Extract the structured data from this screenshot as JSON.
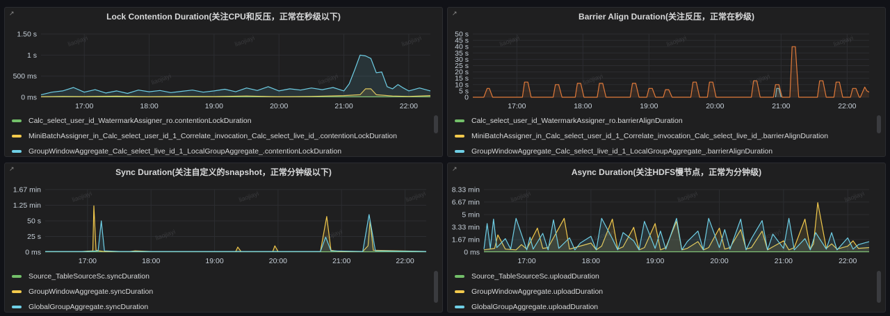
{
  "panels": [
    {
      "title": "Lock Contention Duration(关注CPU和反压，正常在秒级以下)",
      "watermark": "liaojiayi",
      "legend": [
        {
          "label": "Calc_select_user_id_WatermarkAssigner_ro.contentionLockDuration",
          "color": "#73bf69"
        },
        {
          "label": "MiniBatchAssigner_in_Calc_select_user_id_1_Correlate_invocation_Calc_select_live_id_.contentionLockDuration",
          "color": "#f2c94c"
        },
        {
          "label": "GroupWindowAggregate_Calc_select_live_id_1_LocalGroupAggregate_.contentionLockDuration",
          "color": "#6fcfe6"
        }
      ],
      "chart_data": {
        "type": "line",
        "yticks": [
          "0 ms",
          "500 ms",
          "1 s",
          "1.50 s"
        ],
        "ylim_ms": [
          0,
          1500
        ],
        "xticks": [
          "17:00",
          "18:00",
          "19:00",
          "20:00",
          "21:00",
          "22:00"
        ],
        "series": [
          {
            "name": "Calc_select_user_id_WatermarkAssigner_ro.contentionLockDuration",
            "color": "#73bf69",
            "x": [
              "16:20",
              "17:00",
              "18:00",
              "19:00",
              "20:00",
              "21:00",
              "22:00",
              "22:20"
            ],
            "y": [
              10,
              10,
              10,
              10,
              10,
              10,
              10,
              10
            ]
          },
          {
            "name": "MiniBatchAssigner_in_Calc_select_user_id_1_Correlate_invocation_Calc_select_live_id_.contentionLockDuration",
            "color": "#f2c94c",
            "x": [
              "16:20",
              "16:40",
              "17:00",
              "17:30",
              "18:00",
              "18:30",
              "19:00",
              "19:30",
              "20:00",
              "20:30",
              "21:00",
              "21:15",
              "21:20",
              "21:25",
              "21:30",
              "21:45",
              "22:00",
              "22:20"
            ],
            "y": [
              10,
              20,
              15,
              25,
              10,
              20,
              15,
              30,
              10,
              20,
              40,
              60,
              200,
              200,
              60,
              30,
              20,
              40
            ]
          },
          {
            "name": "GroupWindowAggregate_Calc_select_live_id_1_LocalGroupAggregate_.contentionLockDuration",
            "color": "#6fcfe6",
            "x": [
              "16:20",
              "16:30",
              "16:40",
              "16:50",
              "17:00",
              "17:10",
              "17:20",
              "17:30",
              "17:40",
              "17:50",
              "18:00",
              "18:10",
              "18:20",
              "18:30",
              "18:40",
              "18:50",
              "19:00",
              "19:10",
              "19:20",
              "19:30",
              "19:40",
              "19:50",
              "20:00",
              "20:10",
              "20:20",
              "20:30",
              "20:40",
              "20:50",
              "21:00",
              "21:05",
              "21:10",
              "21:15",
              "21:20",
              "21:25",
              "21:30",
              "21:35",
              "21:40",
              "21:45",
              "21:50",
              "21:55",
              "22:00",
              "22:10",
              "22:20"
            ],
            "y": [
              60,
              120,
              150,
              230,
              120,
              180,
              100,
              150,
              90,
              170,
              130,
              160,
              110,
              140,
              170,
              120,
              150,
              190,
              130,
              220,
              160,
              250,
              150,
              200,
              170,
              220,
              180,
              230,
              150,
              320,
              650,
              1000,
              980,
              920,
              580,
              600,
              250,
              200,
              300,
              220,
              150,
              220,
              150
            ]
          }
        ]
      }
    },
    {
      "title": "Barrier Align Duration(关注反压，正常在秒级)",
      "watermark": "liaojiayi",
      "legend": [
        {
          "label": "Calc_select_user_id_WatermarkAssigner_ro.barrierAlignDuration",
          "color": "#73bf69"
        },
        {
          "label": "MiniBatchAssigner_in_Calc_select_user_id_1_Correlate_invocation_Calc_select_live_id_.barrierAlignDuration",
          "color": "#f2c94c"
        },
        {
          "label": "GroupWindowAggregate_Calc_select_live_id_1_LocalGroupAggregate_.barrierAlignDuration",
          "color": "#6fcfe6"
        }
      ],
      "chart_data": {
        "type": "line",
        "yticks": [
          "0",
          "5 s",
          "10 s",
          "15 s",
          "20 s",
          "25 s",
          "30 s",
          "35 s",
          "40 s",
          "45 s",
          "50 s"
        ],
        "ylim_s": [
          0,
          50
        ],
        "xticks": [
          "17:00",
          "18:00",
          "19:00",
          "20:00",
          "21:00",
          "22:00"
        ],
        "series": [
          {
            "name": "MiniBatchAssigner_in_Calc_select_user_id_1_Correlate_invocation_Calc_select_live_id_.barrierAlignDuration",
            "color": "#e07a3a",
            "x": [
              "16:20",
              "16:30",
              "16:33",
              "16:35",
              "16:38",
              "17:00",
              "17:05",
              "17:07",
              "17:10",
              "17:13",
              "17:30",
              "17:33",
              "17:35",
              "17:38",
              "17:41",
              "17:50",
              "17:53",
              "17:55",
              "17:58",
              "18:01",
              "18:10",
              "18:13",
              "18:15",
              "18:18",
              "18:21",
              "18:40",
              "18:43",
              "18:45",
              "18:48",
              "18:51",
              "18:55",
              "18:58",
              "19:00",
              "19:03",
              "19:06",
              "19:10",
              "19:13",
              "19:15",
              "19:18",
              "19:21",
              "19:35",
              "19:38",
              "19:40",
              "19:43",
              "19:46",
              "19:50",
              "19:53",
              "19:55",
              "19:58",
              "20:01",
              "20:30",
              "20:33",
              "20:35",
              "20:38",
              "20:41",
              "20:50",
              "20:53",
              "20:55",
              "20:58",
              "21:01",
              "21:05",
              "21:08",
              "21:10",
              "21:13",
              "21:16",
              "21:30",
              "21:33",
              "21:35",
              "21:38",
              "21:41",
              "21:45",
              "21:48",
              "21:50",
              "21:53",
              "21:56",
              "22:00",
              "22:03",
              "22:05",
              "22:08",
              "22:11",
              "22:12",
              "22:14",
              "22:16",
              "22:18",
              "22:20"
            ],
            "y": [
              0,
              0,
              7,
              7,
              0,
              0,
              0,
              12,
              12,
              0,
              0,
              0,
              10,
              10,
              0,
              0,
              0,
              11,
              11,
              0,
              0,
              0,
              11,
              11,
              0,
              0,
              0,
              11,
              11,
              0,
              0,
              0,
              7,
              7,
              0,
              0,
              0,
              6,
              6,
              0,
              0,
              0,
              12,
              12,
              0,
              0,
              0,
              12,
              12,
              0,
              0,
              0,
              13,
              13,
              0,
              0,
              0,
              10,
              10,
              0,
              0,
              0,
              40,
              40,
              0,
              0,
              0,
              13,
              13,
              0,
              0,
              0,
              12,
              12,
              0,
              0,
              0,
              7,
              7,
              0,
              0,
              4,
              8,
              5,
              4
            ]
          },
          {
            "name": "GroupWindowAggregate_Calc_select_live_id_1_LocalGroupAggregate_.barrierAlignDuration",
            "color": "#8ab8b8",
            "x": [
              "20:55",
              "20:56",
              "20:58",
              "21:00"
            ],
            "y": [
              0,
              7,
              7,
              0
            ]
          }
        ]
      }
    },
    {
      "title": "Sync Duration(关注自定义的snapshot，正常分钟级以下)",
      "watermark": "liaojiayi",
      "legend": [
        {
          "label": "Source_TableSourceSc.syncDuration",
          "color": "#73bf69"
        },
        {
          "label": "GroupWindowAggregate.syncDuration",
          "color": "#f2c94c"
        },
        {
          "label": "GlobalGroupAggregate.syncDuration",
          "color": "#6fcfe6"
        }
      ],
      "chart_data": {
        "type": "line",
        "yticks": [
          "0 ms",
          "25 s",
          "50 s",
          "1.25 min",
          "1.67 min"
        ],
        "ylim_s": [
          0,
          100
        ],
        "xticks": [
          "17:00",
          "18:00",
          "19:00",
          "20:00",
          "21:00",
          "22:00"
        ],
        "series": [
          {
            "name": "Source_TableSourceSc.syncDuration",
            "color": "#73bf69",
            "x": [
              "16:20",
              "22:20"
            ],
            "y": [
              0.5,
              0.5
            ]
          },
          {
            "name": "GroupWindowAggregate.syncDuration",
            "color": "#f2c94c",
            "x": [
              "16:20",
              "16:50",
              "16:55",
              "17:05",
              "17:06",
              "17:08",
              "17:15",
              "17:40",
              "17:45",
              "18:00",
              "19:20",
              "19:22",
              "19:25",
              "19:55",
              "19:57",
              "20:00",
              "20:40",
              "20:46",
              "20:50",
              "20:58",
              "21:20",
              "21:25",
              "21:27",
              "21:30",
              "22:20"
            ],
            "y": [
              1,
              1,
              1,
              2,
              74,
              3,
              1,
              1,
              2,
              1,
              1,
              8,
              1,
              1,
              10,
              1,
              1,
              57,
              3,
              1,
              1,
              10,
              50,
              3,
              1
            ]
          },
          {
            "name": "GlobalGroupAggregate.syncDuration",
            "color": "#6fcfe6",
            "x": [
              "16:20",
              "17:00",
              "17:10",
              "17:13",
              "17:16",
              "17:30",
              "18:00",
              "20:40",
              "20:45",
              "20:50",
              "21:20",
              "21:26",
              "21:32",
              "22:20"
            ],
            "y": [
              1,
              1,
              2,
              50,
              2,
              1,
              1,
              1,
              24,
              2,
              1,
              60,
              2,
              1
            ]
          }
        ]
      }
    },
    {
      "title": "Async Duration(关注HDFS慢节点，正常为分钟级)",
      "watermark": "liaojiayi",
      "legend": [
        {
          "label": "Source_TableSourceSc.uploadDuration",
          "color": "#73bf69"
        },
        {
          "label": "GroupWindowAggregate.uploadDuration",
          "color": "#f2c94c"
        },
        {
          "label": "GlobalGroupAggregate.uploadDuration",
          "color": "#6fcfe6"
        }
      ],
      "chart_data": {
        "type": "line",
        "yticks": [
          "0 ms",
          "1.67 min",
          "3.33 min",
          "5 min",
          "6.67 min",
          "8.33 min"
        ],
        "ylim_min": [
          0,
          8.33
        ],
        "xticks": [
          "17:00",
          "18:00",
          "19:00",
          "20:00",
          "21:00",
          "22:00"
        ],
        "series": [
          {
            "name": "Source_TableSourceSc.uploadDuration",
            "color": "#73bf69",
            "x": [
              "16:20",
              "22:20"
            ],
            "y": [
              0.05,
              0.05
            ]
          },
          {
            "name": "GroupWindowAggregate.uploadDuration",
            "color": "#f2c94c",
            "x": [
              "16:20",
              "16:30",
              "16:33",
              "16:40",
              "16:50",
              "16:55",
              "17:00",
              "17:10",
              "17:15",
              "17:20",
              "17:35",
              "17:40",
              "17:45",
              "18:00",
              "18:05",
              "18:10",
              "18:20",
              "18:25",
              "18:30",
              "18:40",
              "18:45",
              "18:50",
              "19:00",
              "19:05",
              "19:10",
              "19:20",
              "19:25",
              "19:30",
              "19:40",
              "19:45",
              "19:50",
              "20:00",
              "20:05",
              "20:10",
              "20:20",
              "20:25",
              "20:30",
              "20:40",
              "20:45",
              "20:50",
              "21:00",
              "21:05",
              "21:10",
              "21:20",
              "21:25",
              "21:28",
              "21:32",
              "21:40",
              "21:45",
              "21:50",
              "22:00",
              "22:05",
              "22:10",
              "22:20"
            ],
            "y": [
              0.3,
              0.5,
              2.3,
              0.4,
              0.3,
              1.0,
              0.4,
              3.2,
              0.5,
              0.6,
              4.5,
              0.4,
              0.6,
              1.2,
              0.3,
              0.8,
              4.4,
              0.4,
              0.7,
              3.3,
              0.3,
              0.6,
              3.8,
              0.3,
              0.6,
              4.1,
              0.3,
              0.5,
              1.4,
              0.3,
              0.6,
              3.2,
              0.4,
              0.6,
              3.0,
              0.4,
              0.6,
              2.8,
              0.3,
              0.7,
              1.5,
              0.3,
              0.6,
              4.4,
              0.4,
              1.1,
              6.6,
              0.5,
              1.1,
              0.4,
              0.8,
              1.5,
              0.5,
              0.6
            ]
          },
          {
            "name": "GlobalGroupAggregate.uploadDuration",
            "color": "#6fcfe6",
            "x": [
              "16:20",
              "16:23",
              "16:26",
              "16:29",
              "16:32",
              "16:40",
              "16:45",
              "16:50",
              "17:00",
              "17:03",
              "17:06",
              "17:15",
              "17:20",
              "17:25",
              "17:30",
              "17:40",
              "17:45",
              "17:50",
              "18:00",
              "18:05",
              "18:10",
              "18:20",
              "18:25",
              "18:30",
              "18:40",
              "18:45",
              "18:50",
              "19:00",
              "19:05",
              "19:10",
              "19:20",
              "19:25",
              "19:30",
              "19:40",
              "19:45",
              "19:50",
              "20:00",
              "20:05",
              "20:10",
              "20:20",
              "20:25",
              "20:30",
              "20:40",
              "20:45",
              "20:50",
              "21:00",
              "21:05",
              "21:10",
              "21:20",
              "21:25",
              "21:30",
              "21:40",
              "21:45",
              "21:50",
              "22:00",
              "22:05",
              "22:10",
              "22:20"
            ],
            "y": [
              0.4,
              3.8,
              0.5,
              4.4,
              0.6,
              1.8,
              0.4,
              4.5,
              0.3,
              2.0,
              0.4,
              2.5,
              0.3,
              4.3,
              0.5,
              1.9,
              0.3,
              1.2,
              2.1,
              0.3,
              4.5,
              1.8,
              0.3,
              2.6,
              1.5,
              0.3,
              4.1,
              0.5,
              2.8,
              0.4,
              4.5,
              0.3,
              1.4,
              2.8,
              0.3,
              4.5,
              0.6,
              3.0,
              0.4,
              4.4,
              0.3,
              1.8,
              4.2,
              0.3,
              2.4,
              0.5,
              4.5,
              0.3,
              1.8,
              0.3,
              2.6,
              0.4,
              2.6,
              0.3,
              1.9,
              0.4,
              1.0,
              1.4
            ]
          }
        ]
      }
    }
  ]
}
